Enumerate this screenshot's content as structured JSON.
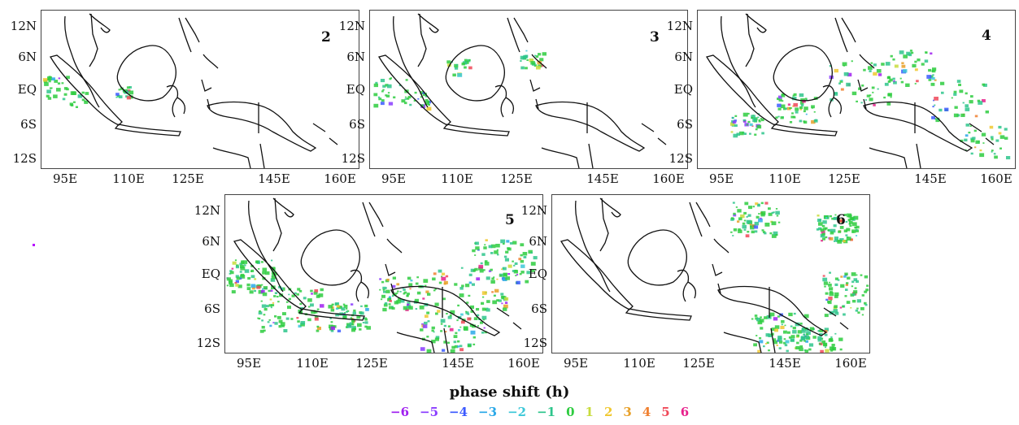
{
  "figure": {
    "lat_labels": [
      "12N",
      "6N",
      "EQ",
      "6S",
      "12S"
    ],
    "lon_labels": [
      "95E",
      "110E",
      "125E",
      "145E",
      "160E"
    ],
    "panels": [
      {
        "label": "2"
      },
      {
        "label": "3"
      },
      {
        "label": "4"
      },
      {
        "label": "5"
      },
      {
        "label": "6"
      }
    ]
  },
  "legend": {
    "title": "phase shift (h)",
    "items": [
      {
        "text": "−6",
        "color": "#a020f0"
      },
      {
        "text": "−5",
        "color": "#8a3cff"
      },
      {
        "text": "−4",
        "color": "#3c5aff"
      },
      {
        "text": "−3",
        "color": "#2aa8e8"
      },
      {
        "text": "−2",
        "color": "#3cc8d8"
      },
      {
        "text": "−1",
        "color": "#2ec58c"
      },
      {
        "text": "0",
        "color": "#2ecc40"
      },
      {
        "text": "1",
        "color": "#c8dc3c"
      },
      {
        "text": "2",
        "color": "#f0c830"
      },
      {
        "text": "3",
        "color": "#e8a028"
      },
      {
        "text": "4",
        "color": "#f08030"
      },
      {
        "text": "5",
        "color": "#f04858"
      },
      {
        "text": "6",
        "color": "#e8208c"
      }
    ]
  }
}
